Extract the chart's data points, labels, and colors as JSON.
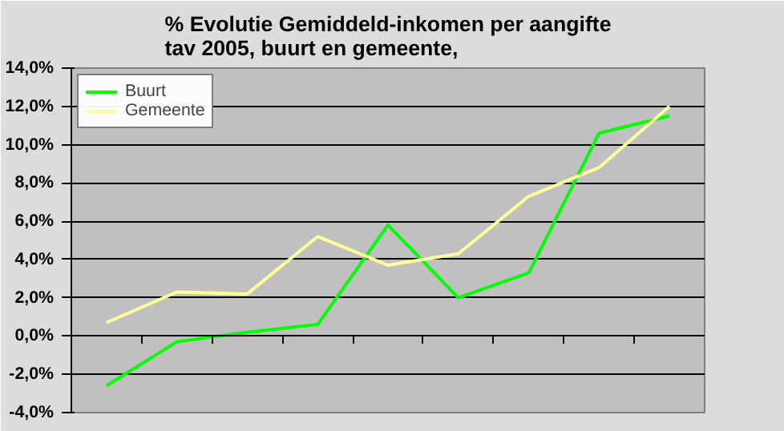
{
  "chart_data": {
    "type": "line",
    "title": "% Evolutie Gemiddeld-inkomen per aangifte\ntav 2005, buurt en gemeente,",
    "categories": [
      null,
      null,
      null,
      null,
      null,
      null,
      null,
      null,
      null
    ],
    "series": [
      {
        "name": "Buurt",
        "color": "#00ff00",
        "values": [
          -2.6,
          -0.3,
          0.2,
          0.6,
          5.8,
          2.0,
          3.3,
          10.6,
          11.5
        ]
      },
      {
        "name": "Gemeente",
        "color": "#ffff99",
        "values": [
          0.7,
          2.3,
          2.2,
          5.2,
          3.7,
          4.3,
          7.3,
          8.8,
          12.0
        ]
      }
    ],
    "ylim": [
      -4,
      14
    ],
    "yticks": [
      {
        "value": -4,
        "label": "-4,0%"
      },
      {
        "value": -2,
        "label": "-2,0%"
      },
      {
        "value": 0,
        "label": "0,0%"
      },
      {
        "value": 2,
        "label": "2,0%"
      },
      {
        "value": 4,
        "label": "4,0%"
      },
      {
        "value": 6,
        "label": "6,0%"
      },
      {
        "value": 8,
        "label": "8,0%"
      },
      {
        "value": 10,
        "label": "10,0%"
      },
      {
        "value": 12,
        "label": "12,0%"
      },
      {
        "value": 14,
        "label": "14,0%"
      }
    ],
    "grid": "y",
    "legend": "top left",
    "marker": "none",
    "line_style": "solid",
    "tick_labels": "y"
  }
}
